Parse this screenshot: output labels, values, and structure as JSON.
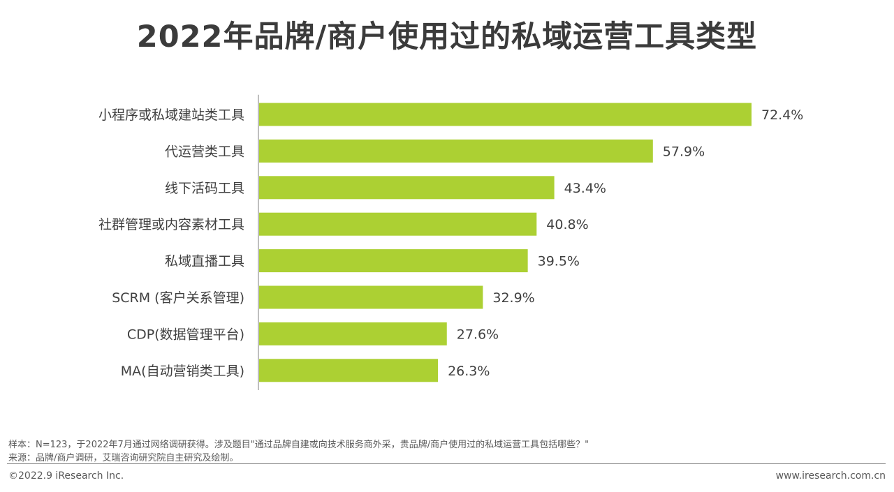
{
  "title": "2022年品牌/商户使用过的私域运营工具类型",
  "chart_data": {
    "type": "bar",
    "orientation": "horizontal",
    "title": "2022年品牌/商户使用过的私域运营工具类型",
    "categories": [
      "小程序或私域建站类工具",
      "代运营类工具",
      "线下活码工具",
      "社群管理或内容素材工具",
      "私域直播工具",
      "SCRM (客户关系管理)",
      "CDP(数据管理平台)",
      "MA(自动营销类工具)"
    ],
    "values": [
      72.4,
      57.9,
      43.4,
      40.8,
      39.5,
      32.9,
      27.6,
      26.3
    ],
    "value_labels": [
      "72.4%",
      "57.9%",
      "43.4%",
      "40.8%",
      "39.5%",
      "32.9%",
      "27.6%",
      "26.3%"
    ],
    "unit": "%",
    "xlim": [
      0,
      80
    ],
    "bar_color": "#acd033",
    "grid": false,
    "legend": "none"
  },
  "footer": {
    "sample": "样本：N=123，于2022年7月通过网络调研获得。涉及题目\"通过品牌自建或向技术服务商外采，贵品牌/商户使用过的私域运营工具包括哪些？\"",
    "source": "来源：品牌/商户调研，艾瑞咨询研究院自主研究及绘制。",
    "copyright": "©2022.9 iResearch Inc.",
    "website": "www.iresearch.com.cn"
  }
}
